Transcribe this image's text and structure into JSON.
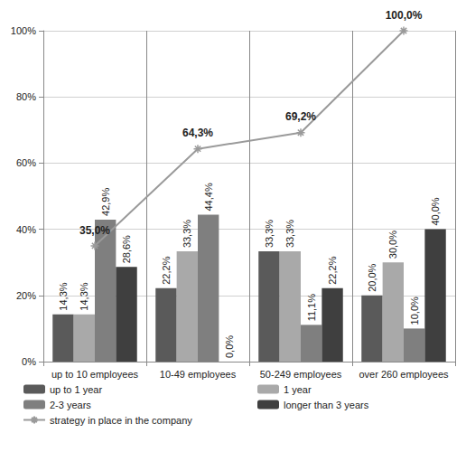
{
  "chart_data": {
    "type": "bar",
    "categories": [
      "up to 10 employees",
      "10-49 employees",
      "50-249 employees",
      "over 260 employees"
    ],
    "series": [
      {
        "name": "up to 1 year",
        "type": "bar",
        "color": "#5a5a5a",
        "values": [
          14.3,
          22.2,
          33.3,
          20.0
        ],
        "value_labels": [
          "14,3%",
          "22,2%",
          "33,3%",
          "20,0%"
        ]
      },
      {
        "name": "1 year",
        "type": "bar",
        "color": "#a9a9a9",
        "values": [
          14.3,
          33.3,
          33.3,
          30.0
        ],
        "value_labels": [
          "14,3%",
          "33,3%",
          "33,3%",
          "30,0%"
        ]
      },
      {
        "name": "2-3 years",
        "type": "bar",
        "color": "#7f7f7f",
        "values": [
          42.9,
          44.4,
          11.1,
          10.0
        ],
        "value_labels": [
          "42,9%",
          "44,4%",
          "11,1%",
          "10,0%"
        ]
      },
      {
        "name": "longer than 3 years",
        "type": "bar",
        "color": "#3f3f3f",
        "values": [
          28.6,
          0.0,
          22.2,
          40.0
        ],
        "value_labels": [
          "28,6%",
          "0,0%",
          "22,2%",
          "40,0%"
        ]
      },
      {
        "name": "strategy in place in the company",
        "type": "line",
        "color": "#9a9a9a",
        "marker": "star",
        "values": [
          35.0,
          64.3,
          69.2,
          100.0
        ],
        "value_labels": [
          "35,0%",
          "64,3%",
          "69,2%",
          "100,0%"
        ]
      }
    ],
    "ylim": [
      0,
      100
    ],
    "yticks": [
      {
        "value": 0,
        "label": "0%"
      },
      {
        "value": 20,
        "label": "20%"
      },
      {
        "value": 40,
        "label": "40%"
      },
      {
        "value": 60,
        "label": "60%"
      },
      {
        "value": 80,
        "label": "80%"
      },
      {
        "value": 100,
        "label": "100%"
      }
    ],
    "grid": true,
    "legend": "bottom",
    "data_labels": true
  }
}
